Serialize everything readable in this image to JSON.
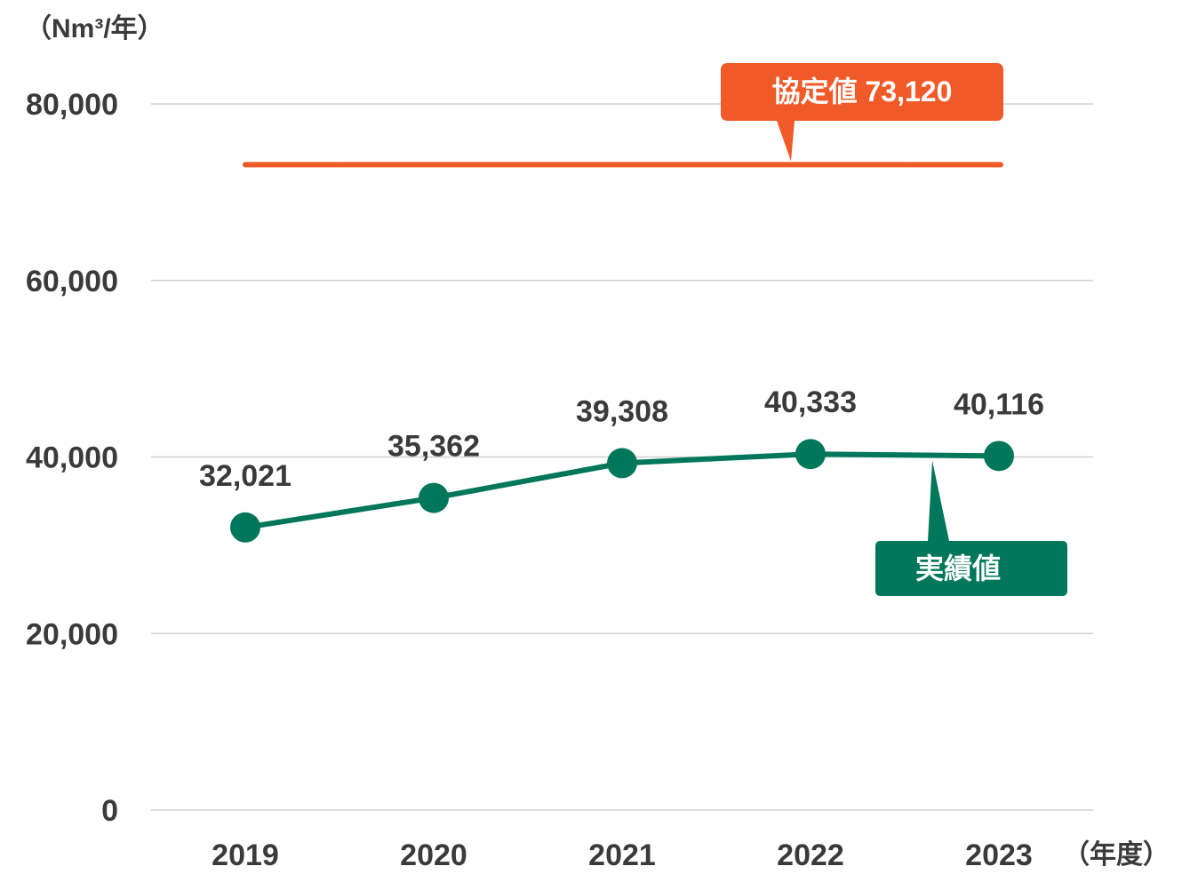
{
  "chart_data": {
    "type": "line",
    "categories": [
      "2019",
      "2020",
      "2021",
      "2022",
      "2023"
    ],
    "series": [
      {
        "name": "実績値",
        "values": [
          32021,
          35362,
          39308,
          40333,
          40116
        ],
        "data_labels": [
          "32,021",
          "35,362",
          "39,308",
          "40,333",
          "40,116"
        ],
        "color": "#00775a"
      }
    ],
    "reference_line": {
      "label": "協定値 73,120",
      "value": 73120,
      "color": "#f05a28"
    },
    "y_unit": "（Nm³/年）",
    "x_unit": "（年度）",
    "ylim": [
      0,
      80000
    ],
    "y_ticks": [
      0,
      20000,
      40000,
      60000,
      80000
    ],
    "y_tick_labels": [
      "0",
      "20,000",
      "40,000",
      "60,000",
      "80,000"
    ],
    "grid": true,
    "legend": "callouts"
  }
}
